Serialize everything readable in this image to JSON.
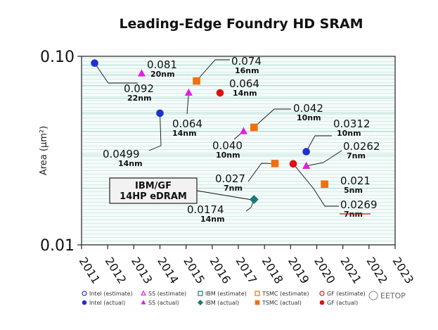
{
  "watermark": "EETOP",
  "chart_data": {
    "type": "scatter",
    "title": "Leading-Edge Foundry HD SRAM",
    "ylabel": "Area (μm²)",
    "xlabel": "",
    "y_scale": "log",
    "ylim": [
      0.01,
      0.1
    ],
    "xlim": [
      2011,
      2023
    ],
    "y_ticks": [
      "0.01",
      "0.10"
    ],
    "x_ticks": [
      "2011",
      "2012",
      "2013",
      "2014",
      "2015",
      "2016",
      "2017",
      "2018",
      "2019",
      "2020",
      "2021",
      "2022",
      "2023"
    ],
    "grid": true,
    "legend_position": "bottom",
    "legend": [
      {
        "label": "Intel (estimate)",
        "shape": "circle",
        "filled": false,
        "color": "#1f2fd0"
      },
      {
        "label": "SS (estimate)",
        "shape": "triangle",
        "filled": false,
        "color": "#e020e0"
      },
      {
        "label": "IBM (estimate)",
        "shape": "square",
        "filled": false,
        "color": "#1a7a7a"
      },
      {
        "label": "TSMC (estimate)",
        "shape": "square",
        "filled": false,
        "color": "#f07010"
      },
      {
        "label": "GF (estimate)",
        "shape": "circle",
        "filled": false,
        "color": "#e01010"
      },
      {
        "label": "Intel (actual)",
        "shape": "circle",
        "filled": true,
        "color": "#1f2fd0"
      },
      {
        "label": "SS (actual)",
        "shape": "triangle",
        "filled": true,
        "color": "#e020e0"
      },
      {
        "label": "IBM (actual)",
        "shape": "diamond",
        "filled": true,
        "color": "#1a7a7a"
      },
      {
        "label": "TSMC (actual)",
        "shape": "square",
        "filled": true,
        "color": "#f07010"
      },
      {
        "label": "GF (actual)",
        "shape": "circle",
        "filled": true,
        "color": "#e01010"
      }
    ],
    "points": [
      {
        "series": "Intel (actual)",
        "x": 2011.5,
        "y": 0.092,
        "label": "0.092",
        "node": "22nm"
      },
      {
        "series": "SS (actual)",
        "x": 2013.3,
        "y": 0.081,
        "label": "0.081",
        "node": "20nm"
      },
      {
        "series": "Intel (actual)",
        "x": 2014.0,
        "y": 0.0499,
        "label": "0.0499",
        "node": "14nm"
      },
      {
        "series": "SS (actual)",
        "x": 2015.1,
        "y": 0.064,
        "label": "0.064",
        "node": "14nm"
      },
      {
        "series": "TSMC (actual)",
        "x": 2015.4,
        "y": 0.074,
        "label": "0.074",
        "node": "16nm"
      },
      {
        "series": "GF (actual)",
        "x": 2016.3,
        "y": 0.064,
        "label": "0.064",
        "node": "14nm"
      },
      {
        "series": "SS (actual)",
        "x": 2017.2,
        "y": 0.04,
        "label": "0.040",
        "node": "10nm"
      },
      {
        "series": "TSMC (actual)",
        "x": 2017.6,
        "y": 0.042,
        "label": "0.042",
        "node": "10nm"
      },
      {
        "series": "IBM (actual)",
        "x": 2017.6,
        "y": 0.0174,
        "label": "0.0174",
        "node": "14nm"
      },
      {
        "series": "TSMC (actual)",
        "x": 2018.4,
        "y": 0.027,
        "label": "0.027",
        "node": "7nm"
      },
      {
        "series": "GF (actual)",
        "x": 2019.1,
        "y": 0.0269,
        "label": "0.0269",
        "node": "7nm"
      },
      {
        "series": "Intel (actual)",
        "x": 2019.6,
        "y": 0.0312,
        "label": "0.0312",
        "node": "10nm"
      },
      {
        "series": "SS (actual)",
        "x": 2019.6,
        "y": 0.0262,
        "label": "0.0262",
        "node": "7nm"
      },
      {
        "series": "TSMC (actual)",
        "x": 2020.3,
        "y": 0.021,
        "label": "0.021",
        "node": "5nm"
      }
    ],
    "annotations": [
      {
        "text_lines": [
          "IBM/GF",
          "14HP eDRAM"
        ],
        "points_to": "0.0174"
      }
    ]
  }
}
